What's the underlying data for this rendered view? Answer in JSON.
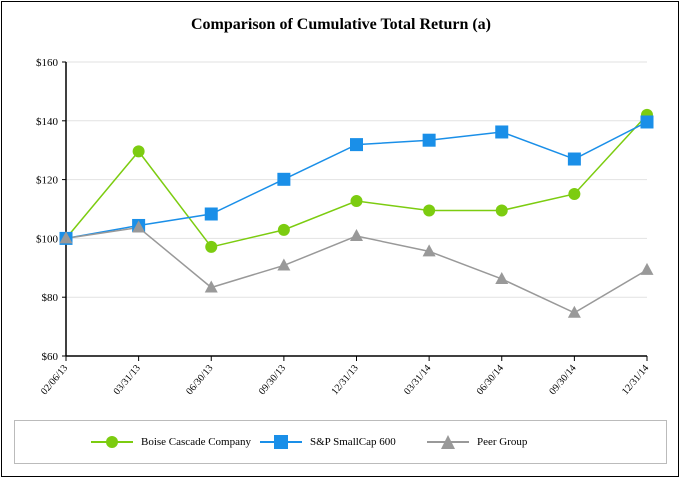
{
  "chart_data": {
    "type": "line",
    "title": "Comparison of Cumulative Total Return (a)",
    "xlabel": "",
    "ylabel": "",
    "categories": [
      "02/06/13",
      "03/31/13",
      "06/30/13",
      "09/30/13",
      "12/31/13",
      "03/31/14",
      "06/30/14",
      "09/30/14",
      "12/31/14"
    ],
    "ylim": [
      60,
      160
    ],
    "yticks": [
      60,
      80,
      100,
      120,
      140,
      160
    ],
    "ytick_labels": [
      "$60",
      "$80",
      "$100",
      "$120",
      "$140",
      "$160"
    ],
    "grid": true,
    "legend_position": "bottom",
    "series": [
      {
        "name": "Boise Cascade Company",
        "color": "#7ccc10",
        "marker": "circle",
        "values": [
          100,
          129.6,
          97.1,
          102.9,
          112.7,
          109.5,
          109.5,
          115.1,
          142.0
        ]
      },
      {
        "name": "S&P SmallCap 600",
        "color": "#1a8fe8",
        "marker": "square",
        "values": [
          100,
          104.4,
          108.3,
          120.1,
          131.9,
          133.4,
          136.2,
          127.0,
          139.6
        ]
      },
      {
        "name": "Peer Group",
        "color": "#999999",
        "marker": "triangle",
        "values": [
          100,
          103.7,
          83.3,
          90.8,
          100.8,
          95.6,
          86.2,
          74.7,
          89.3
        ]
      }
    ]
  }
}
